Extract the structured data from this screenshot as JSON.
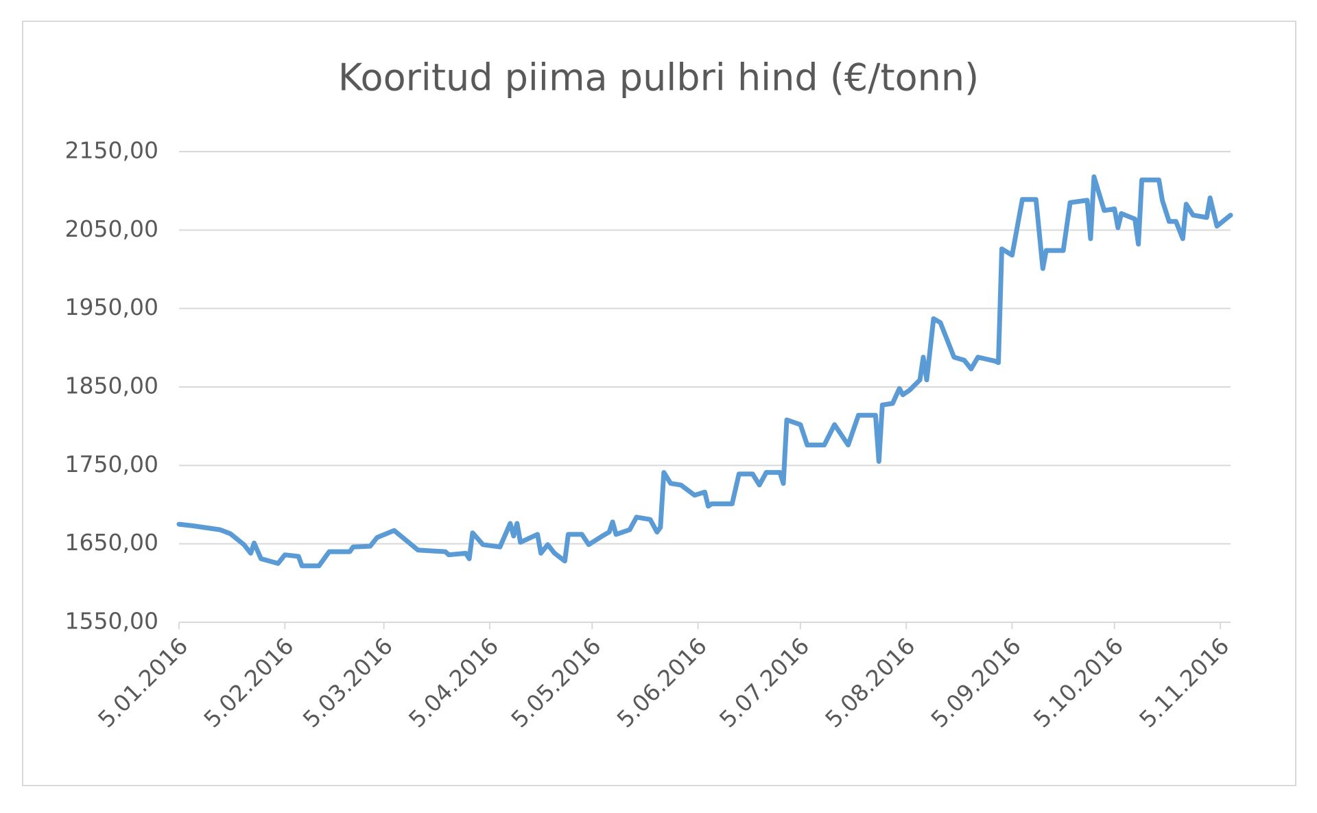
{
  "chart_data": {
    "type": "line",
    "title": "Kooritud piima pulbri hind (€/tonn)",
    "x": [
      "2016-01-05",
      "2016-01-09",
      "2016-01-17",
      "2016-01-20",
      "2016-01-24",
      "2016-01-26",
      "2016-01-27",
      "2016-01-29",
      "2016-02-03",
      "2016-02-05",
      "2016-02-09",
      "2016-02-10",
      "2016-02-15",
      "2016-02-18",
      "2016-02-24",
      "2016-02-25",
      "2016-03-01",
      "2016-03-03",
      "2016-03-08",
      "2016-03-15",
      "2016-03-23",
      "2016-03-24",
      "2016-03-29",
      "2016-03-30",
      "2016-03-31",
      "2016-04-03",
      "2016-04-08",
      "2016-04-11",
      "2016-04-12",
      "2016-04-13",
      "2016-04-14",
      "2016-04-19",
      "2016-04-20",
      "2016-04-22",
      "2016-04-24",
      "2016-04-27",
      "2016-04-28",
      "2016-05-02",
      "2016-05-04",
      "2016-05-08",
      "2016-05-10",
      "2016-05-11",
      "2016-05-12",
      "2016-05-16",
      "2016-05-18",
      "2016-05-22",
      "2016-05-24",
      "2016-05-25",
      "2016-05-26",
      "2016-05-28",
      "2016-05-31",
      "2016-06-04",
      "2016-06-07",
      "2016-06-08",
      "2016-06-09",
      "2016-06-15",
      "2016-06-17",
      "2016-06-21",
      "2016-06-23",
      "2016-06-25",
      "2016-06-29",
      "2016-06-30",
      "2016-07-01",
      "2016-07-05",
      "2016-07-07",
      "2016-07-12",
      "2016-07-15",
      "2016-07-19",
      "2016-07-22",
      "2016-07-27",
      "2016-07-28",
      "2016-07-29",
      "2016-08-01",
      "2016-08-03",
      "2016-08-04",
      "2016-08-06",
      "2016-08-09",
      "2016-08-10",
      "2016-08-11",
      "2016-08-13",
      "2016-08-15",
      "2016-08-19",
      "2016-08-22",
      "2016-08-24",
      "2016-08-26",
      "2016-08-31",
      "2016-09-01",
      "2016-09-02",
      "2016-09-05",
      "2016-09-08",
      "2016-09-12",
      "2016-09-14",
      "2016-09-15",
      "2016-09-20",
      "2016-09-22",
      "2016-09-27",
      "2016-09-28",
      "2016-09-29",
      "2016-10-02",
      "2016-10-05",
      "2016-10-06",
      "2016-10-07",
      "2016-10-11",
      "2016-10-12",
      "2016-10-13",
      "2016-10-18",
      "2016-10-19",
      "2016-10-21",
      "2016-10-23",
      "2016-10-25",
      "2016-10-26",
      "2016-10-28",
      "2016-11-01",
      "2016-11-02",
      "2016-11-04",
      "2016-11-08"
    ],
    "values": [
      1675,
      1673,
      1668,
      1663,
      1649,
      1638,
      1651,
      1631,
      1625,
      1636,
      1634,
      1622,
      1622,
      1640,
      1640,
      1646,
      1647,
      1658,
      1667,
      1642,
      1640,
      1636,
      1638,
      1631,
      1664,
      1649,
      1646,
      1676,
      1660,
      1676,
      1652,
      1662,
      1638,
      1649,
      1638,
      1628,
      1662,
      1662,
      1649,
      1660,
      1665,
      1678,
      1662,
      1668,
      1684,
      1681,
      1665,
      1671,
      1741,
      1727,
      1725,
      1712,
      1716,
      1698,
      1701,
      1701,
      1739,
      1739,
      1725,
      1741,
      1741,
      1727,
      1808,
      1802,
      1776,
      1776,
      1802,
      1776,
      1814,
      1814,
      1755,
      1827,
      1829,
      1848,
      1840,
      1846,
      1859,
      1888,
      1859,
      1937,
      1932,
      1888,
      1884,
      1873,
      1888,
      1883,
      1881,
      2026,
      2018,
      2089,
      2089,
      2001,
      2024,
      2024,
      2085,
      2088,
      2039,
      2118,
      2075,
      2077,
      2053,
      2071,
      2064,
      2032,
      2114,
      2114,
      2088,
      2061,
      2061,
      2039,
      2083,
      2069,
      2066,
      2091,
      2055,
      2069
    ],
    "color": "#5b9bd5",
    "xlim": [
      "2016-01-05",
      "2016-11-08"
    ],
    "xticks": [
      {
        "value": "2016-01-05",
        "label": "5.01.2016"
      },
      {
        "value": "2016-02-05",
        "label": "5.02.2016"
      },
      {
        "value": "2016-03-05",
        "label": "5.03.2016"
      },
      {
        "value": "2016-04-05",
        "label": "5.04.2016"
      },
      {
        "value": "2016-05-05",
        "label": "5.05.2016"
      },
      {
        "value": "2016-06-05",
        "label": "5.06.2016"
      },
      {
        "value": "2016-07-05",
        "label": "5.07.2016"
      },
      {
        "value": "2016-08-05",
        "label": "5.08.2016"
      },
      {
        "value": "2016-09-05",
        "label": "5.09.2016"
      },
      {
        "value": "2016-10-05",
        "label": "5.10.2016"
      },
      {
        "value": "2016-11-05",
        "label": "5.11.2016"
      }
    ],
    "ylim": [
      1550,
      2150
    ],
    "yticks": [
      {
        "value": 1550,
        "label": "1550,00"
      },
      {
        "value": 1650,
        "label": "1650,00"
      },
      {
        "value": 1750,
        "label": "1750,00"
      },
      {
        "value": 1850,
        "label": "1850,00"
      },
      {
        "value": 1950,
        "label": "1950,00"
      },
      {
        "value": 2050,
        "label": "2050,00"
      },
      {
        "value": 2150,
        "label": "2150,00"
      }
    ],
    "grid": true
  }
}
